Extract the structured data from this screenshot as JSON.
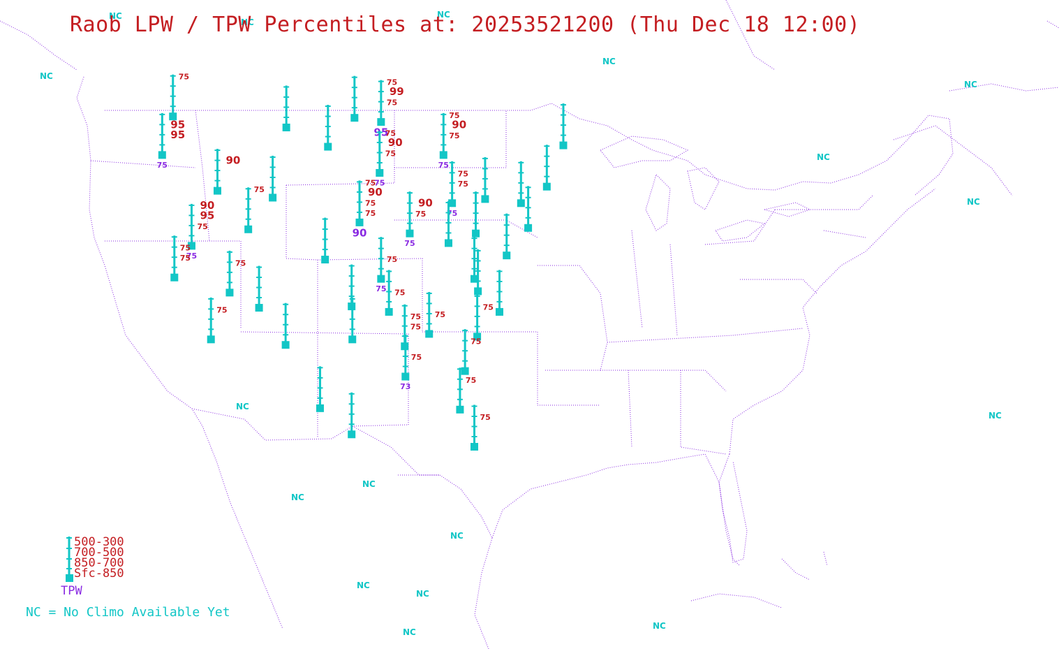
{
  "title": "Raob LPW / TPW Percentiles at: 20253521200 (Thu Dec 18 12:00)",
  "colors": {
    "station": "#12c6c6",
    "layer_label": "#c41e22",
    "tpw_label": "#8a2be2",
    "nc_label": "#12c6c6",
    "boundaries": "#8a2be2"
  },
  "legend": {
    "layers": [
      "500-300",
      "700-500",
      "850-700",
      "Sfc-850"
    ],
    "tpw": "TPW",
    "nc_note": "NC = No Climo Available Yet"
  },
  "nc_text": "NC",
  "stations": [
    {
      "lon": -122.4,
      "lat": 49.0,
      "layers": [
        "75",
        null,
        null,
        null
      ],
      "tpw": null
    },
    {
      "lon": -123.9,
      "lat": 46.2,
      "layers": [
        null,
        "95",
        "95",
        null
      ],
      "tpw": "75"
    },
    {
      "lon": -116.2,
      "lat": 43.6,
      "layers": [
        null,
        "90",
        null,
        null
      ],
      "tpw": null
    },
    {
      "lon": -106.6,
      "lat": 48.2,
      "layers": [
        null,
        null,
        null,
        null
      ],
      "tpw": null
    },
    {
      "lon": -100.8,
      "lat": 46.8,
      "layers": [
        null,
        null,
        null,
        null
      ],
      "tpw": null
    },
    {
      "lon": -97.1,
      "lat": 48.9,
      "layers": [
        null,
        null,
        null,
        null
      ],
      "tpw": null
    },
    {
      "lon": -93.4,
      "lat": 48.6,
      "layers": [
        "75",
        "99",
        "75",
        null
      ],
      "tpw": "95"
    },
    {
      "lon": -93.6,
      "lat": 44.9,
      "layers": [
        "75",
        "90",
        "75",
        null
      ],
      "tpw": "75"
    },
    {
      "lon": -84.7,
      "lat": 46.2,
      "layers": [
        "75",
        "90",
        "75",
        null
      ],
      "tpw": "75"
    },
    {
      "lon": -83.5,
      "lat": 42.7,
      "layers": [
        null,
        "75",
        "75",
        null
      ],
      "tpw": "75"
    },
    {
      "lon": -108.5,
      "lat": 43.1,
      "layers": [
        null,
        null,
        null,
        null
      ],
      "tpw": null
    },
    {
      "lon": -111.9,
      "lat": 40.8,
      "layers": [
        "75",
        null,
        null,
        null
      ],
      "tpw": null
    },
    {
      "lon": -119.8,
      "lat": 39.6,
      "layers": [
        "90",
        "95",
        "75",
        null
      ],
      "tpw": "75"
    },
    {
      "lon": -122.2,
      "lat": 37.3,
      "layers": [
        null,
        "75",
        "75",
        null
      ],
      "tpw": null
    },
    {
      "lon": -114.5,
      "lat": 36.2,
      "layers": [
        null,
        "75",
        null,
        null
      ],
      "tpw": null
    },
    {
      "lon": -110.4,
      "lat": 35.1,
      "layers": [
        null,
        null,
        null,
        null
      ],
      "tpw": null
    },
    {
      "lon": -117.1,
      "lat": 32.8,
      "layers": [
        null,
        "75",
        null,
        null
      ],
      "tpw": null
    },
    {
      "lon": -106.7,
      "lat": 32.4,
      "layers": [
        null,
        null,
        null,
        null
      ],
      "tpw": null
    },
    {
      "lon": -101.2,
      "lat": 38.6,
      "layers": [
        null,
        null,
        null,
        null
      ],
      "tpw": null
    },
    {
      "lon": -96.4,
      "lat": 41.3,
      "layers": [
        "75",
        "90",
        "75",
        "75"
      ],
      "tpw": "90"
    },
    {
      "lon": -89.4,
      "lat": 40.5,
      "layers": [
        null,
        "90",
        "75",
        null
      ],
      "tpw": "75"
    },
    {
      "lon": -93.4,
      "lat": 37.2,
      "layers": [
        null,
        null,
        "75",
        null
      ],
      "tpw": "75"
    },
    {
      "lon": -97.5,
      "lat": 35.2,
      "layers": [
        null,
        null,
        null,
        null
      ],
      "tpw": null
    },
    {
      "lon": -97.4,
      "lat": 32.8,
      "layers": [
        null,
        null,
        null,
        null
      ],
      "tpw": null
    },
    {
      "lon": -92.3,
      "lat": 34.8,
      "layers": [
        null,
        null,
        "75",
        null
      ],
      "tpw": null
    },
    {
      "lon": -101.9,
      "lat": 27.8,
      "layers": [
        null,
        null,
        null,
        null
      ],
      "tpw": null
    },
    {
      "lon": -97.5,
      "lat": 25.9,
      "layers": [
        null,
        null,
        null,
        null
      ],
      "tpw": null
    },
    {
      "lon": -90.1,
      "lat": 32.3,
      "layers": [
        null,
        "75",
        "75",
        null
      ],
      "tpw": null
    },
    {
      "lon": -90.0,
      "lat": 30.1,
      "layers": [
        null,
        null,
        "75",
        null
      ],
      "tpw": "73"
    },
    {
      "lon": -86.7,
      "lat": 33.2,
      "layers": [
        null,
        null,
        "75",
        null
      ],
      "tpw": null
    },
    {
      "lon": -84.0,
      "lat": 39.8,
      "layers": [
        null,
        null,
        null,
        null
      ],
      "tpw": null
    },
    {
      "lon": -80.2,
      "lat": 40.5,
      "layers": [
        null,
        null,
        null,
        null
      ],
      "tpw": null
    },
    {
      "lon": -78.9,
      "lat": 43.0,
      "layers": [
        null,
        null,
        null,
        null
      ],
      "tpw": null
    },
    {
      "lon": -75.9,
      "lat": 38.9,
      "layers": [
        null,
        null,
        null,
        null
      ],
      "tpw": null
    },
    {
      "lon": -80.4,
      "lat": 37.2,
      "layers": [
        null,
        null,
        null,
        null
      ],
      "tpw": null
    },
    {
      "lon": -79.9,
      "lat": 36.3,
      "layers": [
        null,
        null,
        null,
        null
      ],
      "tpw": null
    },
    {
      "lon": -76.9,
      "lat": 34.8,
      "layers": [
        null,
        null,
        null,
        null
      ],
      "tpw": null
    },
    {
      "lon": -80.0,
      "lat": 33.0,
      "layers": [
        null,
        "75",
        null,
        null
      ],
      "tpw": null
    },
    {
      "lon": -81.7,
      "lat": 30.5,
      "layers": [
        null,
        "75",
        null,
        null
      ],
      "tpw": null
    },
    {
      "lon": -82.4,
      "lat": 27.7,
      "layers": [
        null,
        "75",
        null,
        null
      ],
      "tpw": null
    },
    {
      "lon": -80.4,
      "lat": 25.0,
      "layers": [
        null,
        "75",
        null,
        null
      ],
      "tpw": null
    },
    {
      "lon": -73.9,
      "lat": 42.7,
      "layers": [
        null,
        null,
        null,
        null
      ],
      "tpw": null
    },
    {
      "lon": -72.9,
      "lat": 40.9,
      "layers": [
        null,
        null,
        null,
        null
      ],
      "tpw": null
    },
    {
      "lon": -70.3,
      "lat": 43.9,
      "layers": [
        null,
        null,
        null,
        null
      ],
      "tpw": null
    },
    {
      "lon": -68.0,
      "lat": 46.9,
      "layers": [
        null,
        null,
        null,
        null
      ],
      "tpw": null
    }
  ]
}
